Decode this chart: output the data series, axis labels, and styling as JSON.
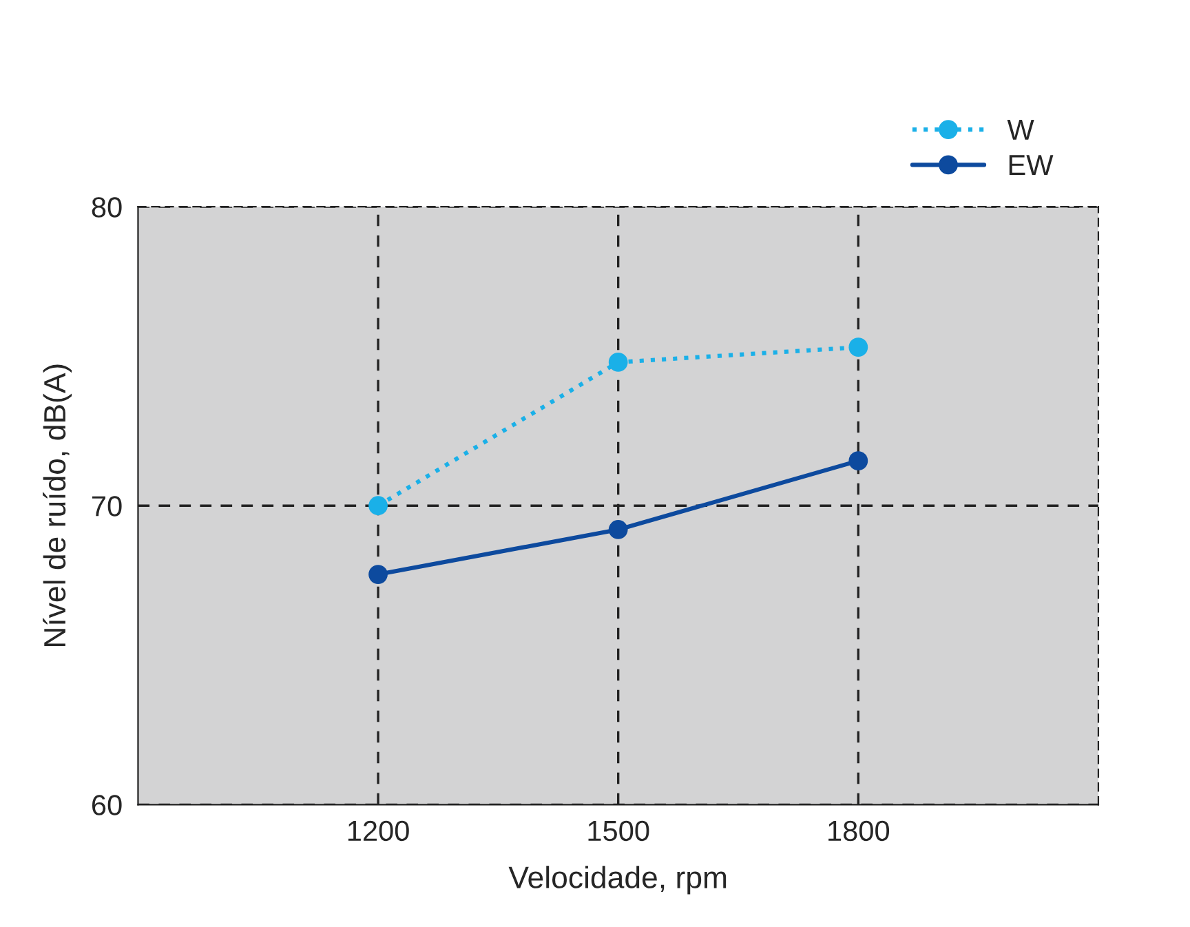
{
  "chart_data": {
    "type": "line",
    "xlabel": "Velocidade, rpm",
    "ylabel": "Nível de ruído, dB(A)",
    "x": [
      1200,
      1500,
      1800
    ],
    "series": [
      {
        "name": "W",
        "color": "#1ab0e8",
        "values": [
          70.0,
          74.8,
          75.3
        ],
        "line_style": "dotted"
      },
      {
        "name": "EW",
        "color": "#0d4a9e",
        "values": [
          67.7,
          69.2,
          71.5
        ],
        "line_style": "solid"
      }
    ],
    "xlim": [
      900,
      2100
    ],
    "xticks": [
      1200,
      1500,
      1800
    ],
    "ylim": [
      60,
      80
    ],
    "yticks": [
      60,
      70,
      80
    ],
    "grid": true,
    "legend": "top right",
    "marker": "circle"
  }
}
